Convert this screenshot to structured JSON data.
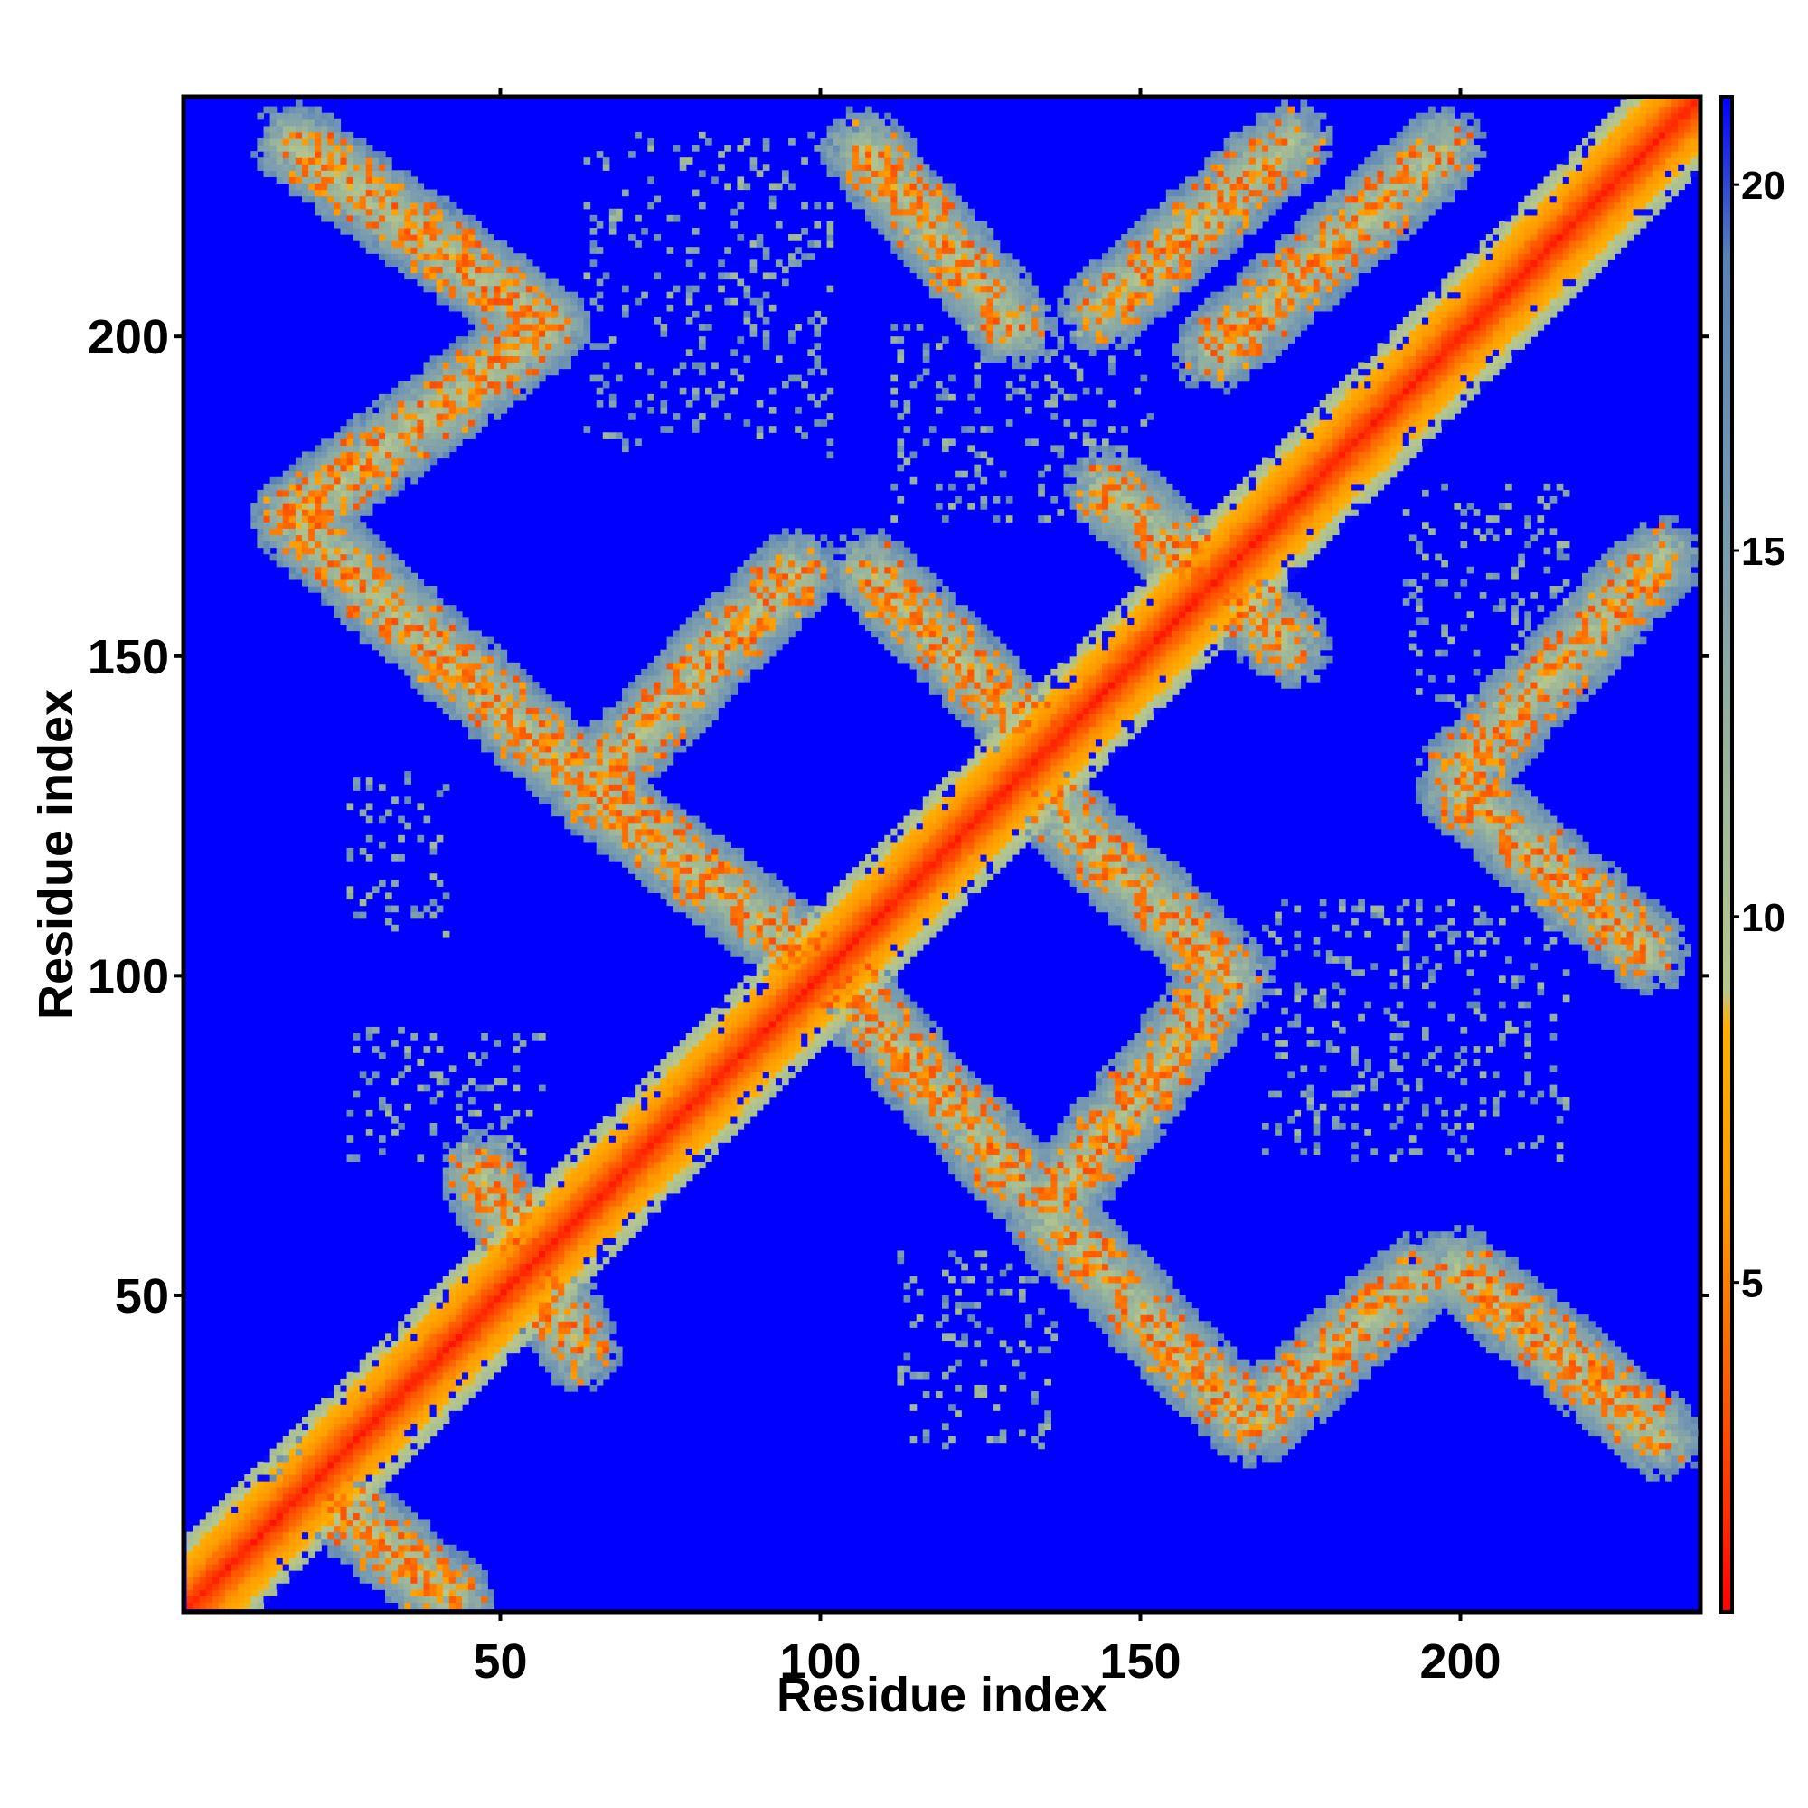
{
  "chart_data": {
    "type": "heatmap",
    "title": "",
    "xlabel": "Residue index",
    "ylabel": "Residue index",
    "n_residues": 237,
    "xlim": [
      1,
      237
    ],
    "ylim": [
      1,
      237
    ],
    "x_ticks": [
      50,
      100,
      150,
      200
    ],
    "y_ticks": [
      50,
      100,
      150,
      200
    ],
    "x_tick_labels": [
      "50",
      "100",
      "150",
      "200"
    ],
    "y_tick_labels": [
      "50",
      "100",
      "150",
      "200"
    ],
    "colorbar": {
      "range": [
        0.5,
        21.2
      ],
      "ticks": [
        5,
        10,
        15,
        20
      ],
      "tick_labels": [
        "5",
        "10",
        "15",
        "20"
      ],
      "colors": [
        "#ff0000",
        "#ff3300",
        "#ff6600",
        "#ff9900",
        "#ffb000",
        "#b8c88c",
        "#9ab59a",
        "#7a9cb0",
        "#5a82b4",
        "#0000ff"
      ],
      "stops": [
        0.5,
        2,
        4,
        6,
        8.5,
        9,
        12,
        15,
        19,
        21.2
      ]
    },
    "background_value": 21.2,
    "grid": false,
    "legend": "none",
    "diagonal": {
      "start": 1,
      "end": 237,
      "note": "distance increases with |i-j|"
    },
    "contact_bands": [
      {
        "i": [
          16,
          56
        ],
        "j": [
          229,
          200
        ]
      },
      {
        "i": [
          56,
          16
        ],
        "j": [
          200,
          170
        ]
      },
      {
        "i": [
          16,
          59
        ],
        "j": [
          170,
          131
        ]
      },
      {
        "i": [
          62,
          95
        ],
        "j": [
          128,
          162
        ]
      },
      {
        "i": [
          62,
          105
        ],
        "j": [
          128,
          95
        ]
      },
      {
        "i": [
          105,
          129
        ],
        "j": [
          228,
          200
        ]
      },
      {
        "i": [
          106,
          130
        ],
        "j": [
          162,
          138
        ]
      },
      {
        "i": [
          135,
          163
        ],
        "j": [
          125,
          98
        ]
      },
      {
        "i": [
          106,
          130
        ],
        "j": [
          92,
          66
        ]
      },
      {
        "i": [
          134,
          160
        ],
        "j": [
          62,
          95
        ]
      },
      {
        "i": [
          134,
          164
        ],
        "j": [
          61,
          30
        ]
      },
      {
        "i": [
          166,
          192
        ],
        "j": [
          28,
          52
        ]
      },
      {
        "i": [
          198,
          230
        ],
        "j": [
          53,
          26
        ]
      },
      {
        "i": [
          198,
          228
        ],
        "j": [
          128,
          102
        ]
      },
      {
        "i": [
          198,
          230
        ],
        "j": [
          130,
          164
        ]
      },
      {
        "i": [
          160,
          196
        ],
        "j": [
          196,
          228
        ]
      },
      {
        "i": [
          142,
          172
        ],
        "j": [
          202,
          229
        ]
      },
      {
        "i": [
          143,
          172
        ],
        "j": [
          175,
          150
        ]
      },
      {
        "i": [
          45,
          61
        ],
        "j": [
          68,
          40
        ]
      },
      {
        "i": [
          18,
          42
        ],
        "j": [
          20,
          0
        ]
      }
    ],
    "sparse_regions": [
      {
        "i": [
          62,
          100
        ],
        "j": [
          180,
          230
        ]
      },
      {
        "i": [
          110,
          150
        ],
        "j": [
          170,
          200
        ]
      },
      {
        "i": [
          25,
          40
        ],
        "j": [
          105,
          130
        ]
      },
      {
        "i": [
          25,
          55
        ],
        "j": [
          70,
          90
        ]
      },
      {
        "i": [
          110,
          135
        ],
        "j": [
          25,
          55
        ]
      },
      {
        "i": [
          168,
          215
        ],
        "j": [
          70,
          110
        ]
      },
      {
        "i": [
          190,
          215
        ],
        "j": [
          140,
          175
        ]
      }
    ]
  }
}
